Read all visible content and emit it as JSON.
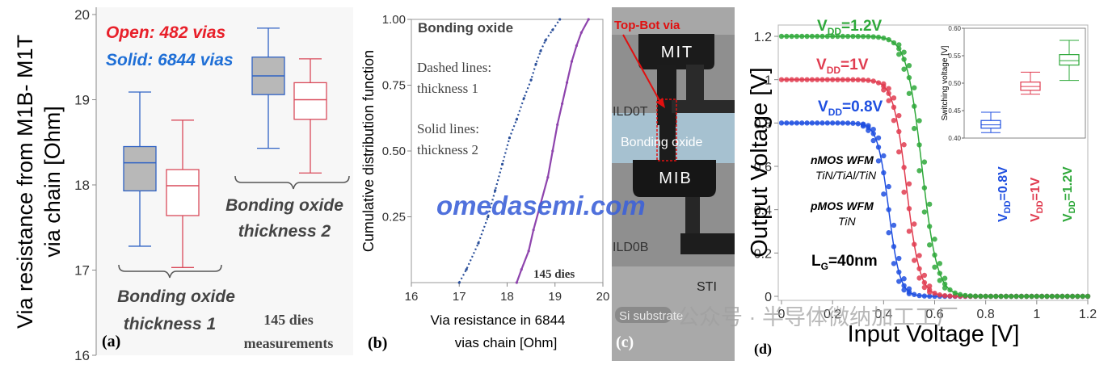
{
  "chart_data": [
    {
      "panel_label": "(a)",
      "type": "box",
      "ylabel": "Via  resistance from M1B- M1T via chain [Ohm]",
      "ylim": [
        16,
        20
      ],
      "yticks": [
        "16",
        "17",
        "18",
        "19",
        "20"
      ],
      "legend": {
        "open": "Open: 482 vias",
        "solid": "Solid: 6844 vias",
        "open_color": "#e8202a",
        "solid_color": "#1f6fd6"
      },
      "group_labels": [
        "Bonding oxide thickness 1",
        "Bonding oxide thickness 2"
      ],
      "group_label_lines": [
        [
          "Bonding oxide",
          "thickness 1"
        ],
        [
          "Bonding oxide",
          "thickness 2"
        ]
      ],
      "note": [
        "145 dies",
        "measurements"
      ],
      "boxes": [
        {
          "name": "solid-t1",
          "min": 17.28,
          "q1": 17.93,
          "median": 18.26,
          "q3": 18.45,
          "max": 19.09,
          "fill": "#b8b8b8",
          "stroke": "#2f62c4"
        },
        {
          "name": "open-t1",
          "min": 17.03,
          "q1": 17.64,
          "median": 17.99,
          "q3": 18.18,
          "max": 18.76,
          "fill": "#ffffff",
          "stroke": "#d94a5a"
        },
        {
          "name": "solid-t2",
          "min": 18.43,
          "q1": 19.06,
          "median": 19.28,
          "q3": 19.5,
          "max": 19.84,
          "fill": "#b8b8b8",
          "stroke": "#2f62c4"
        },
        {
          "name": "open-t2",
          "min": 18.14,
          "q1": 18.77,
          "median": 19.0,
          "q3": 19.2,
          "max": 19.48,
          "fill": "#ffffff",
          "stroke": "#d94a5a"
        }
      ]
    },
    {
      "panel_label": "(b)",
      "type": "line",
      "ylabel": "Cumulative distribution function",
      "xlabel": [
        "Via resistance in 6844",
        "vias chain [Ohm]"
      ],
      "xlim": [
        16,
        20
      ],
      "ylim": [
        0,
        1
      ],
      "xticks": [
        "16",
        "17",
        "18",
        "19",
        "20"
      ],
      "yticks": [
        "0.25",
        "0.50",
        "0.75",
        "1.00"
      ],
      "annotations": [
        "Bonding oxide",
        "Dashed lines:",
        "thickness 1",
        "Solid  lines:",
        "thickness 2",
        "145 dies"
      ],
      "series": [
        {
          "style": "dashed",
          "color": "#2a4f9a",
          "x": [
            17.0,
            17.15,
            17.4,
            17.6,
            17.75,
            17.9,
            18.05,
            18.2,
            18.35,
            18.5,
            18.6,
            18.7,
            18.8,
            18.95,
            19.1
          ],
          "y": [
            0.0,
            0.05,
            0.15,
            0.25,
            0.35,
            0.45,
            0.55,
            0.62,
            0.7,
            0.77,
            0.83,
            0.88,
            0.92,
            0.96,
            1.0
          ]
        },
        {
          "style": "solid",
          "color": "#8e44ad",
          "x": [
            18.2,
            18.3,
            18.45,
            18.55,
            18.7,
            18.85,
            18.95,
            19.05,
            19.15,
            19.25,
            19.35,
            19.45,
            19.55,
            19.7
          ],
          "y": [
            0.0,
            0.05,
            0.12,
            0.2,
            0.3,
            0.4,
            0.5,
            0.6,
            0.68,
            0.76,
            0.84,
            0.9,
            0.95,
            1.0
          ]
        }
      ]
    },
    {
      "panel_label": "(c)",
      "type": "image",
      "labels": {
        "arrow": "Top-Bot via",
        "mit": "MIT",
        "ild0t": "ILD0T",
        "bonding": "Bonding oxide",
        "mib": "MIB",
        "ild0b": "ILD0B",
        "sti": "STI",
        "substrate": "Si substrate"
      }
    },
    {
      "panel_label": "(d)",
      "type": "scatter",
      "xlabel": "Input Voltage [V]",
      "ylabel": "Output Voltage [V]",
      "xlim": [
        0,
        1.2
      ],
      "ylim": [
        0,
        1.2
      ],
      "xticks": [
        "0",
        "0.2",
        "0.4",
        "0.6",
        "0.8",
        "1",
        "1.2"
      ],
      "yticks": [
        "0",
        "0.2",
        "0.4",
        "0.6",
        "0.8",
        "1",
        "1.2"
      ],
      "annotations": {
        "nmos_title": "nMOS WFM",
        "nmos_value": "TiN/TiAl/TiN",
        "pmos_title": "pMOS WFM",
        "pmos_value": "TiN",
        "lg": "L",
        "lg_sub": "G",
        "lg_value": "=40nm"
      },
      "series": [
        {
          "label": "V",
          "label_sub": "DD",
          "label_value": "=0.8V",
          "vdd": 0.8,
          "vm": 0.42,
          "color": "#1f4fe0"
        },
        {
          "label": "V",
          "label_sub": "DD",
          "label_value": "=1V",
          "vdd": 1.0,
          "vm": 0.49,
          "color": "#e03c50"
        },
        {
          "label": "V",
          "label_sub": "DD",
          "label_value": "=1.2V",
          "vdd": 1.2,
          "vm": 0.55,
          "color": "#2ea83a"
        }
      ],
      "inset": {
        "type": "box",
        "ylabel": "Switching voltage [V]",
        "ylim": [
          0.4,
          0.6
        ],
        "yticks": [
          "0.40",
          "0.45",
          "0.50",
          "0.55",
          "0.60"
        ],
        "boxes": [
          {
            "name": "vdd-0.8",
            "min": 0.41,
            "q1": 0.418,
            "median": 0.424,
            "q3": 0.432,
            "max": 0.447,
            "color": "#1f4fe0"
          },
          {
            "name": "vdd-1",
            "min": 0.48,
            "q1": 0.487,
            "median": 0.494,
            "q3": 0.502,
            "max": 0.52,
            "color": "#e03c50"
          },
          {
            "name": "vdd-1.2",
            "min": 0.505,
            "q1": 0.533,
            "median": 0.541,
            "q3": 0.552,
            "max": 0.578,
            "color": "#2ea83a"
          }
        ]
      }
    }
  ],
  "watermark": "omedasemi.com",
  "footer_watermark": "公众号 · 半导体微纳加工工厂"
}
